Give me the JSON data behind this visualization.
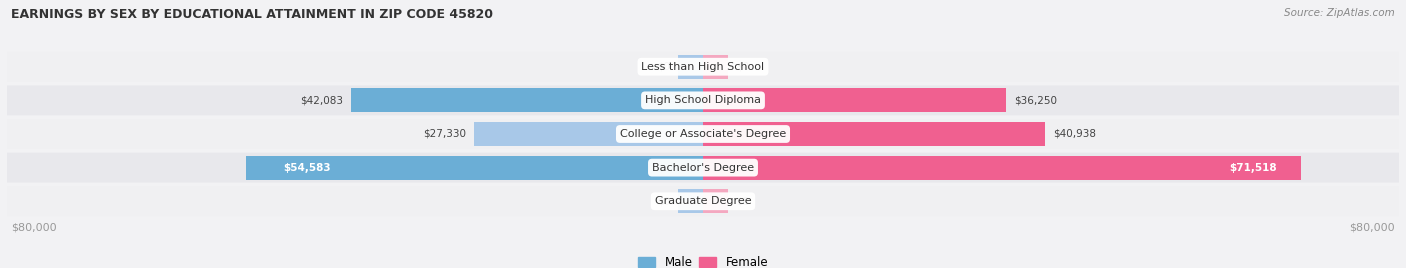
{
  "title": "EARNINGS BY SEX BY EDUCATIONAL ATTAINMENT IN ZIP CODE 45820",
  "source": "Source: ZipAtlas.com",
  "categories": [
    "Less than High School",
    "High School Diploma",
    "College or Associate's Degree",
    "Bachelor's Degree",
    "Graduate Degree"
  ],
  "male_values": [
    0,
    42083,
    27330,
    54583,
    0
  ],
  "female_values": [
    0,
    36250,
    40938,
    71518,
    0
  ],
  "male_stub": [
    3000,
    42083,
    27330,
    54583,
    3000
  ],
  "female_stub": [
    3000,
    36250,
    40938,
    71518,
    3000
  ],
  "max_scale": 80000,
  "male_color_dark": "#6baed6",
  "male_color_light": "#a8c8e8",
  "female_color_dark": "#f06090",
  "female_color_light": "#f4a8c0",
  "row_bg_odd": "#f0f0f2",
  "row_bg_even": "#e8e8ec",
  "label_color_dark": "#444444",
  "label_color_white": "#ffffff",
  "title_color": "#333333",
  "axis_label_color": "#999999",
  "legend_male_color": "#6baed6",
  "legend_female_color": "#f06090",
  "bar_height": 0.72
}
